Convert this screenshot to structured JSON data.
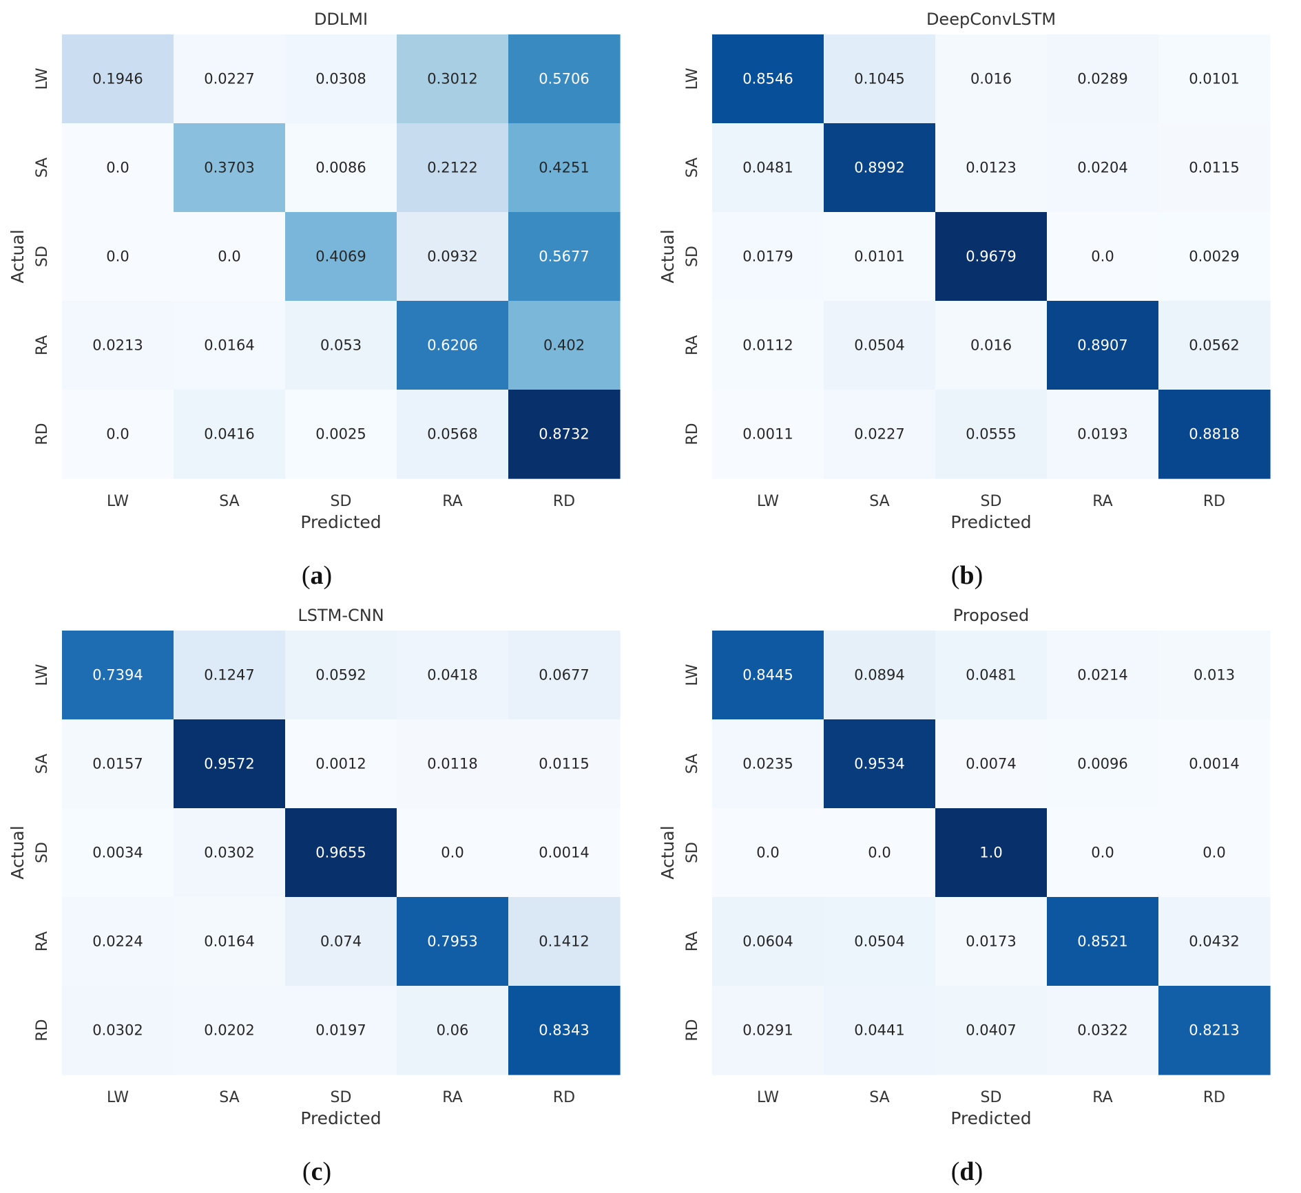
{
  "chart_data": [
    {
      "type": "heatmap",
      "title": "DDLMI",
      "caption_letter": "a",
      "xlabel": "Predicted",
      "ylabel": "Actual",
      "x_categories": [
        "LW",
        "SA",
        "SD",
        "RA",
        "RD"
      ],
      "y_categories": [
        "LW",
        "SA",
        "SD",
        "RA",
        "RD"
      ],
      "colormap": "Blues",
      "values": [
        [
          "0.1946",
          "0.0227",
          "0.0308",
          "0.3012",
          "0.5706"
        ],
        [
          "0.0",
          "0.3703",
          "0.0086",
          "0.2122",
          "0.4251"
        ],
        [
          "0.0",
          "0.0",
          "0.4069",
          "0.0932",
          "0.5677"
        ],
        [
          "0.0213",
          "0.0164",
          "0.053",
          "0.6206",
          "0.402"
        ],
        [
          "0.0",
          "0.0416",
          "0.0025",
          "0.0568",
          "0.8732"
        ]
      ]
    },
    {
      "type": "heatmap",
      "title": "DeepConvLSTM",
      "caption_letter": "b",
      "xlabel": "Predicted",
      "ylabel": "Actual",
      "x_categories": [
        "LW",
        "SA",
        "SD",
        "RA",
        "RD"
      ],
      "y_categories": [
        "LW",
        "SA",
        "SD",
        "RA",
        "RD"
      ],
      "colormap": "Blues",
      "values": [
        [
          "0.8546",
          "0.1045",
          "0.016",
          "0.0289",
          "0.0101"
        ],
        [
          "0.0481",
          "0.8992",
          "0.0123",
          "0.0204",
          "0.0115"
        ],
        [
          "0.0179",
          "0.0101",
          "0.9679",
          "0.0",
          "0.0029"
        ],
        [
          "0.0112",
          "0.0504",
          "0.016",
          "0.8907",
          "0.0562"
        ],
        [
          "0.0011",
          "0.0227",
          "0.0555",
          "0.0193",
          "0.8818"
        ]
      ]
    },
    {
      "type": "heatmap",
      "title": "LSTM-CNN",
      "caption_letter": "c",
      "xlabel": "Predicted",
      "ylabel": "Actual",
      "x_categories": [
        "LW",
        "SA",
        "SD",
        "RA",
        "RD"
      ],
      "y_categories": [
        "LW",
        "SA",
        "SD",
        "RA",
        "RD"
      ],
      "colormap": "Blues",
      "values": [
        [
          "0.7394",
          "0.1247",
          "0.0592",
          "0.0418",
          "0.0677"
        ],
        [
          "0.0157",
          "0.9572",
          "0.0012",
          "0.0118",
          "0.0115"
        ],
        [
          "0.0034",
          "0.0302",
          "0.9655",
          "0.0",
          "0.0014"
        ],
        [
          "0.0224",
          "0.0164",
          "0.074",
          "0.7953",
          "0.1412"
        ],
        [
          "0.0302",
          "0.0202",
          "0.0197",
          "0.06",
          "0.8343"
        ]
      ]
    },
    {
      "type": "heatmap",
      "title": "Proposed",
      "caption_letter": "d",
      "xlabel": "Predicted",
      "ylabel": "Actual",
      "x_categories": [
        "LW",
        "SA",
        "SD",
        "RA",
        "RD"
      ],
      "y_categories": [
        "LW",
        "SA",
        "SD",
        "RA",
        "RD"
      ],
      "colormap": "Blues",
      "values": [
        [
          "0.8445",
          "0.0894",
          "0.0481",
          "0.0214",
          "0.013"
        ],
        [
          "0.0235",
          "0.9534",
          "0.0074",
          "0.0096",
          "0.0014"
        ],
        [
          "0.0",
          "0.0",
          "1.0",
          "0.0",
          "0.0"
        ],
        [
          "0.0604",
          "0.0504",
          "0.0173",
          "0.8521",
          "0.0432"
        ],
        [
          "0.0291",
          "0.0441",
          "0.0407",
          "0.0322",
          "0.8213"
        ]
      ]
    }
  ]
}
